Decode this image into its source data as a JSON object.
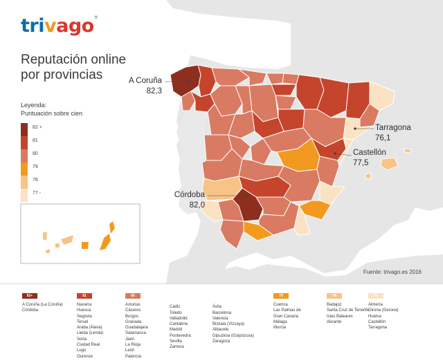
{
  "brand": {
    "name": "trivago",
    "name_parts": [
      "tri",
      "v",
      "ago"
    ],
    "registered": "®"
  },
  "title": [
    "Reputación online",
    "por provincias"
  ],
  "legend": {
    "heading": [
      "Leyenda:",
      "Puntuación sobre cien"
    ],
    "steps": [
      {
        "label": "82 +",
        "color": "#8e2e1e"
      },
      {
        "label": "81",
        "color": "#c4452c"
      },
      {
        "label": "80",
        "color": "#d97b63"
      },
      {
        "label": "79",
        "color": "#f29a1f"
      },
      {
        "label": "78",
        "color": "#f7c486"
      },
      {
        "label": "77 -",
        "color": "#fbe2c3"
      }
    ]
  },
  "callouts": {
    "coruna": {
      "name": "A Coruña",
      "value": "82,3"
    },
    "tarragona": {
      "name": "Tarragona",
      "value": "76,1"
    },
    "castellon": {
      "name": "Castellón",
      "value": "77,5"
    },
    "cordoba": {
      "name": "Córdoba",
      "value": "82,0"
    }
  },
  "source": "Fuente: trivago.es 2016",
  "columns": [
    {
      "badge": "82+",
      "color": "#8e2e1e",
      "items": [
        "A Coruña (La Coruña)",
        "Córdoba"
      ]
    },
    {
      "badge": "81",
      "color": "#c4452c",
      "items": [
        "Navarra",
        "Huesca",
        "Segovia",
        "Teruel",
        "Araba (Álava)",
        "Lleida (Lérida)",
        "Soria",
        "Ciudad Real",
        "Lugo",
        "Ourense"
      ]
    },
    {
      "badge": "80",
      "color": "#d97b63",
      "items": [
        "Asturias",
        "Cáceres",
        "Burgos",
        "Granada",
        "Guadalajara",
        "Salamanca",
        "Jaén",
        "La Rioja",
        "León",
        "Palencia"
      ]
    },
    {
      "badge": "",
      "color": "",
      "items": [
        "Cádiz",
        "Toledo",
        "Valladolid",
        "Cantabria",
        "Madrid",
        "Pontevedra",
        "Sevilla",
        "Zamora"
      ]
    },
    {
      "badge": "",
      "color": "",
      "items": [
        "Ávila",
        "Barcelona",
        "Valencia",
        "Bizkaia (Vizcaya)",
        "Albacete",
        "Gipuzkoa (Guipúzcoa)",
        "Zaragoza"
      ]
    },
    {
      "badge": "79",
      "color": "#f29a1f",
      "items": [
        "Cuenca",
        "Las Palmas de",
        "Gran Canaria",
        "Málaga",
        "Murcia"
      ]
    },
    {
      "badge": "78",
      "color": "#f7c486",
      "items": [
        "Badajoz",
        "Santa Cruz de Tenerife",
        "Islas Baleares",
        "Alicante"
      ]
    },
    {
      "badge": "77-",
      "color": "#fbe2c3",
      "items": [
        "Almería",
        "Girona (Gerona)",
        "Huelva",
        "Castellón",
        "Tarragona"
      ]
    }
  ]
}
